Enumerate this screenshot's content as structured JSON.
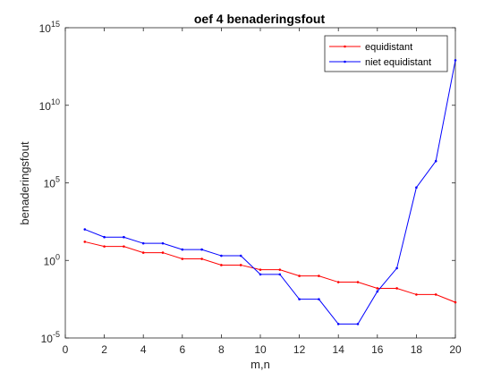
{
  "chart_data": {
    "type": "line",
    "title": "oef 4  benaderingsfout",
    "xlabel": "m,n",
    "ylabel": "benaderingsfout",
    "xlim": [
      0,
      20
    ],
    "xticks": [
      "0",
      "2",
      "4",
      "6",
      "8",
      "10",
      "12",
      "14",
      "16",
      "18",
      "20"
    ],
    "yscale": "log",
    "ylim_exponent": [
      -5,
      15
    ],
    "yticks": [
      {
        "base": "10",
        "exp": "-5"
      },
      {
        "base": "10",
        "exp": "0"
      },
      {
        "base": "10",
        "exp": "5"
      },
      {
        "base": "10",
        "exp": "10"
      },
      {
        "base": "10",
        "exp": "15"
      }
    ],
    "grid": false,
    "legend_position": "top-right",
    "series": [
      {
        "name": "equidistant",
        "color": "#ff0000",
        "x": [
          1,
          2,
          3,
          4,
          5,
          6,
          7,
          8,
          9,
          10,
          11,
          12,
          13,
          14,
          15,
          16,
          17,
          18,
          19,
          20
        ],
        "log10_y": [
          1.2,
          0.9,
          0.9,
          0.5,
          0.5,
          0.1,
          0.1,
          -0.3,
          -0.3,
          -0.6,
          -0.6,
          -1.0,
          -1.0,
          -1.4,
          -1.4,
          -1.8,
          -1.8,
          -2.2,
          -2.2,
          -2.7
        ]
      },
      {
        "name": "niet equidistant",
        "color": "#0000ff",
        "x": [
          1,
          2,
          3,
          4,
          5,
          6,
          7,
          8,
          9,
          10,
          11,
          12,
          13,
          14,
          15,
          16,
          17,
          18,
          19,
          20
        ],
        "log10_y": [
          2.0,
          1.5,
          1.5,
          1.1,
          1.1,
          0.7,
          0.7,
          0.3,
          0.3,
          -0.9,
          -0.9,
          -2.5,
          -2.5,
          -4.1,
          -4.1,
          -2.0,
          -0.5,
          4.7,
          6.4,
          12.9
        ]
      }
    ]
  }
}
